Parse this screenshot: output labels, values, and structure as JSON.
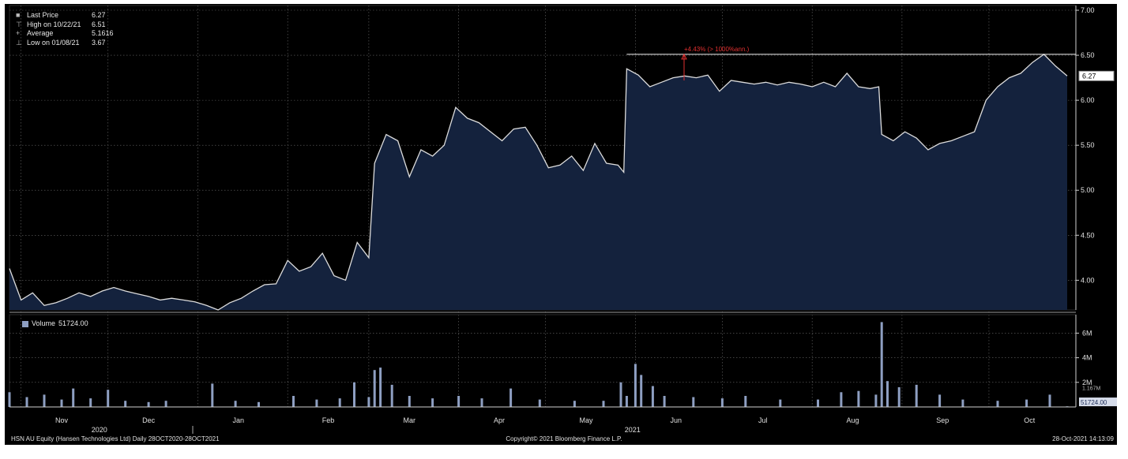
{
  "colors": {
    "background": "#000000",
    "area_fill": "#14223d",
    "price_line": "#dcdcdc",
    "volume_bar": "#8e9fc2",
    "grid": "#6a6a6a",
    "annotation": "#e03030",
    "axis_text": "#e0e0e0"
  },
  "legend": {
    "rows": [
      {
        "icon": "square-icon",
        "label": "Last Price",
        "value": "6.27"
      },
      {
        "icon": "high-marker-icon",
        "label": "High on 10/22/21",
        "value": "6.51"
      },
      {
        "icon": "average-marker-icon",
        "label": "Average",
        "value": "5.1616"
      },
      {
        "icon": "low-marker-icon",
        "label": "Low on 01/08/21",
        "value": "3.67"
      }
    ],
    "volume_label": "Volume",
    "volume_value": "51724.00"
  },
  "annotation": {
    "text": "+4.43% (> 1000%ann.)"
  },
  "labels": {
    "last_price_tag": "6.27",
    "volume_tag": "51724.00",
    "volume_tag_small": "1.167M"
  },
  "footer": {
    "left": "HSN AU Equity (Hansen Technologies Ltd)  Daily 28OCT2020-28OCT2021",
    "center": "Copyright© 2021 Bloomberg Finance L.P.",
    "right": "28-Oct-2021 14:13:09"
  },
  "chart_data": [
    {
      "type": "area",
      "title": "",
      "ylim": [
        3.67,
        7.0
      ],
      "y_ticks": [
        "4.00",
        "4.50",
        "5.00",
        "5.50",
        "6.00",
        "6.50",
        "7.00"
      ],
      "x_ticks": [
        "Nov",
        "Dec",
        "Jan",
        "Feb",
        "Mar",
        "Apr",
        "May",
        "Jun",
        "Jul",
        "Aug",
        "Sep",
        "Oct"
      ],
      "year_labels": [
        "2020",
        "2021"
      ],
      "grid": true,
      "series": [
        {
          "name": "Last Price",
          "points": [
            [
              "2020-10-28",
              4.13
            ],
            [
              "2020-11-01",
              3.78
            ],
            [
              "2020-11-05",
              3.86
            ],
            [
              "2020-11-09",
              3.72
            ],
            [
              "2020-11-13",
              3.75
            ],
            [
              "2020-11-17",
              3.8
            ],
            [
              "2020-11-21",
              3.86
            ],
            [
              "2020-11-25",
              3.82
            ],
            [
              "2020-11-29",
              3.88
            ],
            [
              "2020-12-03",
              3.92
            ],
            [
              "2020-12-07",
              3.88
            ],
            [
              "2020-12-11",
              3.85
            ],
            [
              "2020-12-15",
              3.82
            ],
            [
              "2020-12-19",
              3.78
            ],
            [
              "2020-12-23",
              3.8
            ],
            [
              "2020-12-27",
              3.78
            ],
            [
              "2020-12-31",
              3.76
            ],
            [
              "2021-01-04",
              3.72
            ],
            [
              "2021-01-08",
              3.67
            ],
            [
              "2021-01-12",
              3.75
            ],
            [
              "2021-01-16",
              3.8
            ],
            [
              "2021-01-20",
              3.88
            ],
            [
              "2021-01-24",
              3.95
            ],
            [
              "2021-01-28",
              3.96
            ],
            [
              "2021-02-01",
              4.22
            ],
            [
              "2021-02-05",
              4.1
            ],
            [
              "2021-02-09",
              4.15
            ],
            [
              "2021-02-13",
              4.3
            ],
            [
              "2021-02-17",
              4.05
            ],
            [
              "2021-02-21",
              4.0
            ],
            [
              "2021-02-25",
              4.42
            ],
            [
              "2021-03-01",
              4.25
            ],
            [
              "2021-03-03",
              5.3
            ],
            [
              "2021-03-07",
              5.62
            ],
            [
              "2021-03-11",
              5.55
            ],
            [
              "2021-03-15",
              5.15
            ],
            [
              "2021-03-19",
              5.45
            ],
            [
              "2021-03-23",
              5.38
            ],
            [
              "2021-03-27",
              5.5
            ],
            [
              "2021-03-31",
              5.92
            ],
            [
              "2021-04-04",
              5.8
            ],
            [
              "2021-04-08",
              5.75
            ],
            [
              "2021-04-12",
              5.65
            ],
            [
              "2021-04-16",
              5.55
            ],
            [
              "2021-04-20",
              5.68
            ],
            [
              "2021-04-24",
              5.7
            ],
            [
              "2021-04-28",
              5.5
            ],
            [
              "2021-05-02",
              5.25
            ],
            [
              "2021-05-06",
              5.28
            ],
            [
              "2021-05-10",
              5.38
            ],
            [
              "2021-05-14",
              5.22
            ],
            [
              "2021-05-18",
              5.52
            ],
            [
              "2021-05-22",
              5.3
            ],
            [
              "2021-05-26",
              5.28
            ],
            [
              "2021-05-28",
              5.2
            ],
            [
              "2021-05-29",
              6.35
            ],
            [
              "2021-06-02",
              6.28
            ],
            [
              "2021-06-06",
              6.15
            ],
            [
              "2021-06-10",
              6.2
            ],
            [
              "2021-06-14",
              6.25
            ],
            [
              "2021-06-18",
              6.27
            ],
            [
              "2021-06-22",
              6.25
            ],
            [
              "2021-06-26",
              6.28
            ],
            [
              "2021-06-30",
              6.1
            ],
            [
              "2021-07-04",
              6.22
            ],
            [
              "2021-07-08",
              6.2
            ],
            [
              "2021-07-12",
              6.18
            ],
            [
              "2021-07-16",
              6.2
            ],
            [
              "2021-07-20",
              6.17
            ],
            [
              "2021-07-24",
              6.2
            ],
            [
              "2021-07-28",
              6.18
            ],
            [
              "2021-08-01",
              6.15
            ],
            [
              "2021-08-05",
              6.2
            ],
            [
              "2021-08-09",
              6.15
            ],
            [
              "2021-08-13",
              6.3
            ],
            [
              "2021-08-17",
              6.15
            ],
            [
              "2021-08-21",
              6.13
            ],
            [
              "2021-08-24",
              6.15
            ],
            [
              "2021-08-25",
              5.62
            ],
            [
              "2021-08-29",
              5.55
            ],
            [
              "2021-09-02",
              5.65
            ],
            [
              "2021-09-06",
              5.58
            ],
            [
              "2021-09-10",
              5.45
            ],
            [
              "2021-09-14",
              5.52
            ],
            [
              "2021-09-18",
              5.55
            ],
            [
              "2021-09-22",
              5.6
            ],
            [
              "2021-09-26",
              5.65
            ],
            [
              "2021-09-30",
              6.0
            ],
            [
              "2021-10-04",
              6.15
            ],
            [
              "2021-10-08",
              6.25
            ],
            [
              "2021-10-12",
              6.3
            ],
            [
              "2021-10-16",
              6.42
            ],
            [
              "2021-10-20",
              6.51
            ],
            [
              "2021-10-24",
              6.38
            ],
            [
              "2021-10-28",
              6.27
            ]
          ]
        }
      ],
      "reference_line": {
        "value": 6.51,
        "from": "2021-05-29",
        "to": "2021-10-28"
      }
    },
    {
      "type": "bar",
      "title": "",
      "ylim": [
        0,
        7.5
      ],
      "y_unit": "M",
      "y_ticks": [
        "2M",
        "4M",
        "6M"
      ],
      "series": [
        {
          "name": "Volume",
          "points": [
            [
              "2020-10-28",
              1.2
            ],
            [
              "2020-11-03",
              0.8
            ],
            [
              "2020-11-09",
              1.0
            ],
            [
              "2020-11-15",
              0.6
            ],
            [
              "2020-11-19",
              1.5
            ],
            [
              "2020-11-25",
              0.7
            ],
            [
              "2020-12-01",
              1.4
            ],
            [
              "2020-12-07",
              0.5
            ],
            [
              "2020-12-15",
              0.4
            ],
            [
              "2020-12-21",
              0.5
            ],
            [
              "2021-01-06",
              1.9
            ],
            [
              "2021-01-14",
              0.5
            ],
            [
              "2021-01-22",
              0.4
            ],
            [
              "2021-02-03",
              0.9
            ],
            [
              "2021-02-11",
              0.6
            ],
            [
              "2021-02-19",
              0.7
            ],
            [
              "2021-02-24",
              2.0
            ],
            [
              "2021-03-01",
              0.8
            ],
            [
              "2021-03-03",
              3.0
            ],
            [
              "2021-03-05",
              3.2
            ],
            [
              "2021-03-09",
              1.8
            ],
            [
              "2021-03-15",
              0.9
            ],
            [
              "2021-03-23",
              0.7
            ],
            [
              "2021-04-01",
              0.9
            ],
            [
              "2021-04-09",
              0.7
            ],
            [
              "2021-04-19",
              1.5
            ],
            [
              "2021-04-29",
              0.6
            ],
            [
              "2021-05-11",
              0.5
            ],
            [
              "2021-05-21",
              0.5
            ],
            [
              "2021-05-27",
              2.0
            ],
            [
              "2021-05-29",
              0.9
            ],
            [
              "2021-06-01",
              3.5
            ],
            [
              "2021-06-03",
              2.6
            ],
            [
              "2021-06-07",
              1.7
            ],
            [
              "2021-06-11",
              0.9
            ],
            [
              "2021-06-21",
              0.8
            ],
            [
              "2021-07-01",
              0.7
            ],
            [
              "2021-07-09",
              0.9
            ],
            [
              "2021-07-21",
              0.6
            ],
            [
              "2021-08-03",
              0.6
            ],
            [
              "2021-08-11",
              1.2
            ],
            [
              "2021-08-17",
              1.3
            ],
            [
              "2021-08-23",
              1.0
            ],
            [
              "2021-08-25",
              6.9
            ],
            [
              "2021-08-27",
              2.1
            ],
            [
              "2021-08-31",
              1.6
            ],
            [
              "2021-09-06",
              1.8
            ],
            [
              "2021-09-14",
              1.0
            ],
            [
              "2021-09-22",
              0.6
            ],
            [
              "2021-10-04",
              0.5
            ],
            [
              "2021-10-14",
              0.6
            ],
            [
              "2021-10-22",
              1.0
            ],
            [
              "2021-10-28",
              0.05
            ]
          ]
        }
      ]
    }
  ]
}
